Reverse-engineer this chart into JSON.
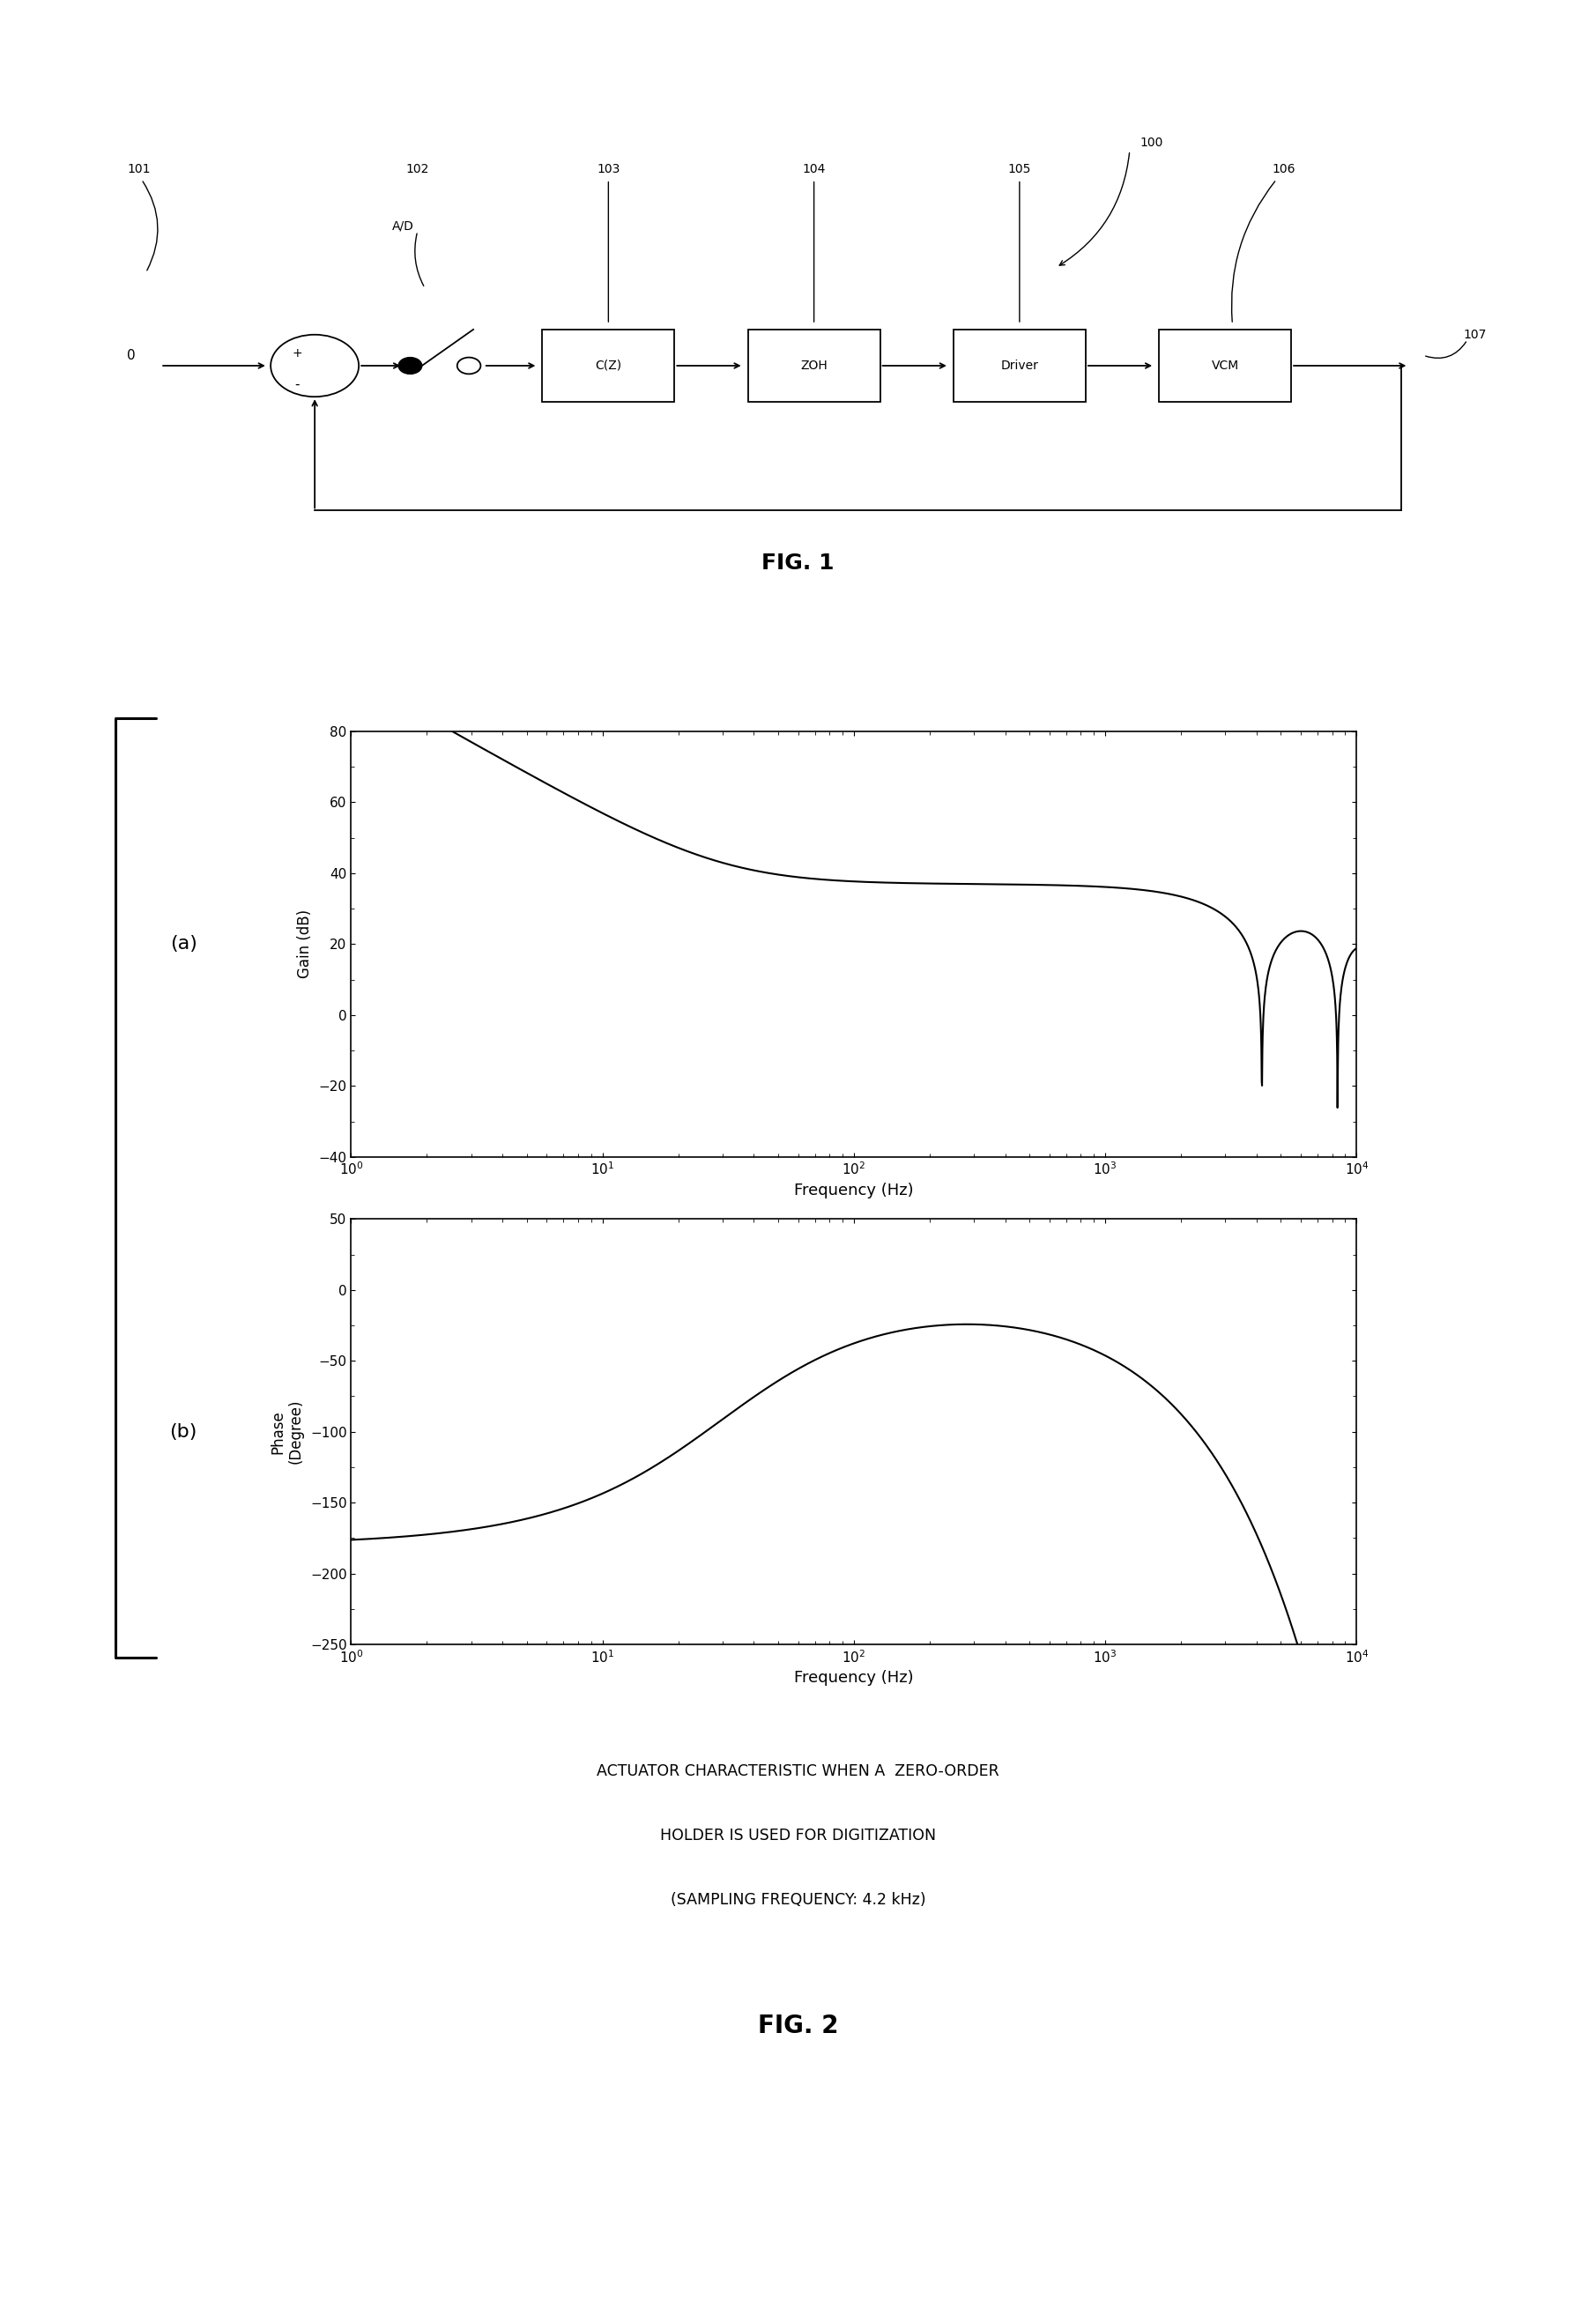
{
  "background_color": "#ffffff",
  "fig_width": 18.11,
  "fig_height": 26.1,
  "fig1_title": "FIG. 1",
  "fig2_title": "FIG. 2",
  "fig1_labels": {
    "ref_101": "101",
    "ref_102": "102",
    "ad_text": "A/D",
    "ref_103": "103",
    "cz_text": "C(Z)",
    "ref_104": "104",
    "zoh_text": "ZOH",
    "ref_100": "100",
    "ref_105": "105",
    "driver_text": "Driver",
    "ref_106": "106",
    "vcm_text": "VCM",
    "ref_107": "107",
    "input_val": "0",
    "plus": "+",
    "minus": "-"
  },
  "plot_a_ylabel": "Gain (dB)",
  "plot_a_xlabel": "Frequency (Hz)",
  "plot_b_ylabel": "Phase\n(Degree)",
  "plot_b_xlabel": "Frequency (Hz)",
  "plot_a_yticks": [
    -40,
    -20,
    0,
    20,
    40,
    60,
    80
  ],
  "plot_b_yticks": [
    -250,
    -200,
    -150,
    -100,
    -50,
    0,
    50
  ],
  "plot_xlim": [
    1,
    10000
  ],
  "plot_a_ylim": [
    -40,
    80
  ],
  "plot_b_ylim": [
    -250,
    50
  ],
  "label_a": "(a)",
  "label_b": "(b)",
  "caption_line1": "ACTUATOR CHARACTERISTIC WHEN A  ZERO-ORDER",
  "caption_line2": "HOLDER IS USED FOR DIGITIZATION",
  "caption_line3": "(SAMPLING FREQUENCY: 4.2 kHz)",
  "line_color": "#000000"
}
